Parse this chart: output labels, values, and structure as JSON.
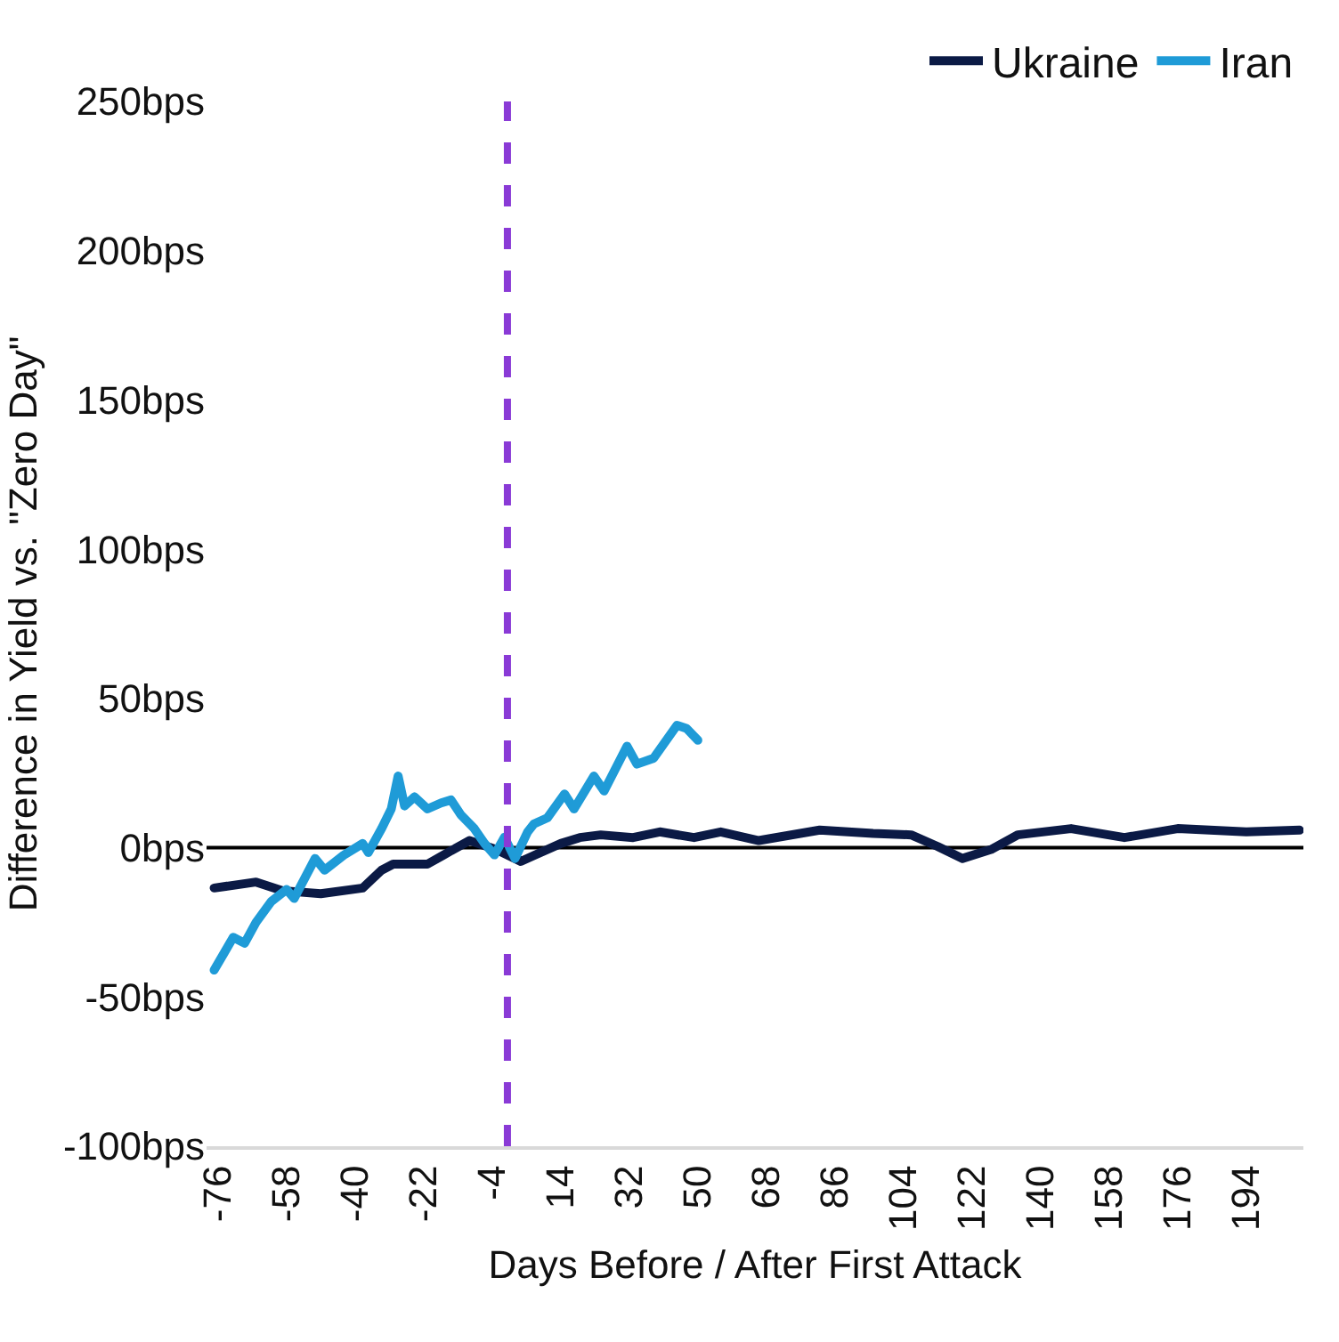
{
  "chart_data": {
    "type": "line",
    "xlabel": "Days Before / After First Attack",
    "ylabel": "Difference in Yield vs. \"Zero Day\"",
    "xlim": [
      -79,
      209
    ],
    "xticks": [
      -76,
      -58,
      -40,
      -22,
      -4,
      14,
      32,
      50,
      68,
      86,
      104,
      122,
      140,
      158,
      176,
      194
    ],
    "ylim": [
      -100,
      250
    ],
    "yticks": [
      {
        "value": 250,
        "label": "250bps"
      },
      {
        "value": 200,
        "label": "200bps"
      },
      {
        "value": 150,
        "label": "150bps"
      },
      {
        "value": 100,
        "label": "100bps"
      },
      {
        "value": 50,
        "label": "50bps"
      },
      {
        "value": 0,
        "label": "0bps"
      },
      {
        "value": -50,
        "label": "-50bps"
      },
      {
        "value": -100,
        "label": "-100bps"
      }
    ],
    "grid": false,
    "legend": "top right",
    "marker": "none",
    "line_style": "solid",
    "ref_lines": [
      {
        "axis": "y",
        "value": 0,
        "color": "#000000",
        "line_style": "solid"
      },
      {
        "axis": "x",
        "value": 0,
        "color": "#8a3ad6",
        "line_style": "dashed"
      }
    ],
    "series": [
      {
        "name": "Ukraine",
        "color": "#0b1a45",
        "x": [
          -77,
          -66,
          -59,
          -49,
          -38,
          -33,
          -30,
          -21,
          -17,
          -10,
          -3,
          3.5,
          7,
          14,
          19,
          24.5,
          33,
          40,
          49,
          56,
          66,
          82,
          96,
          106,
          113,
          119.5,
          127,
          134,
          148,
          162,
          176,
          194,
          208
        ],
        "values": [
          -13.5,
          -11.5,
          -14.4,
          -15.4,
          -13.5,
          -7.5,
          -5.5,
          -5.5,
          -2.6,
          2.4,
          -0.6,
          -4.6,
          -2.6,
          1.4,
          3.4,
          4.3,
          3.4,
          5.3,
          3.4,
          5.3,
          2.4,
          5.9,
          4.8,
          4.3,
          0.4,
          -3.6,
          -0.6,
          4.3,
          6.4,
          3.4,
          6.4,
          5.3,
          5.9
        ]
      },
      {
        "name": "Iran",
        "color": "#1f9bd7",
        "x": [
          -77,
          -72,
          -69,
          -66,
          -62,
          -58,
          -56,
          -50.5,
          -48,
          -43,
          -38,
          -36.5,
          -33,
          -30.5,
          -28.7,
          -27,
          -24.4,
          -21,
          -17.4,
          -14.8,
          -12.2,
          -8.7,
          -6,
          -3.4,
          -0.8,
          2,
          5.3,
          7,
          10.5,
          15,
          17.5,
          22.7,
          25.4,
          31.4,
          34,
          38.4,
          44.5,
          47,
          50
        ],
        "values": [
          -41,
          -30,
          -32,
          -25,
          -18,
          -14,
          -17,
          -3.6,
          -7.5,
          -2.5,
          1.4,
          -1.6,
          6.5,
          13,
          24,
          14,
          17,
          13,
          15,
          16,
          11,
          6.4,
          1.4,
          -2.4,
          3.5,
          -3.6,
          5.3,
          8,
          10,
          18,
          13,
          24,
          19,
          34,
          28,
          30,
          41,
          40,
          36
        ]
      }
    ]
  }
}
